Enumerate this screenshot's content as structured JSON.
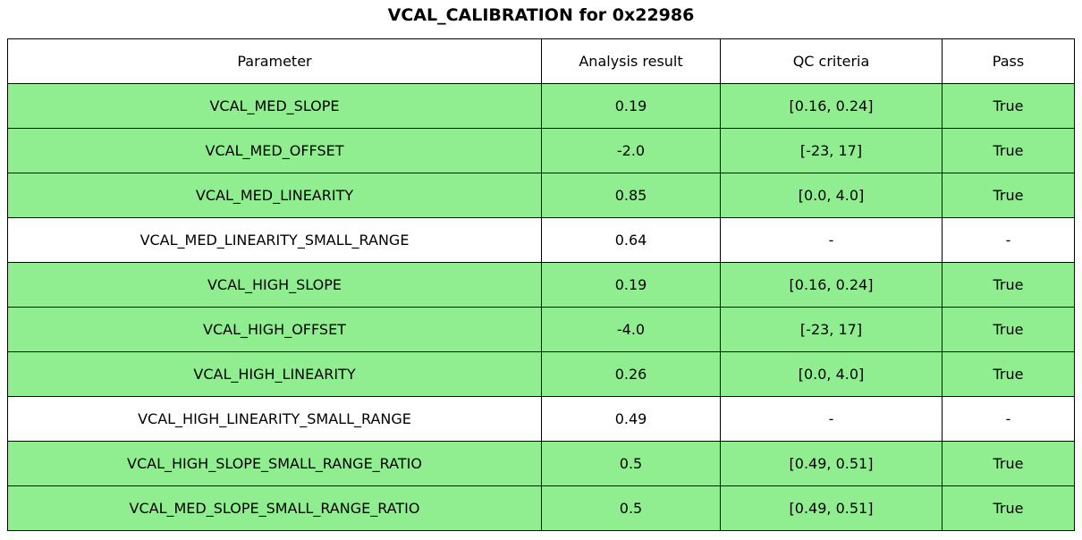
{
  "title": "VCAL_CALIBRATION for 0x22986",
  "chart_data": {
    "type": "table",
    "title": "VCAL_CALIBRATION for 0x22986",
    "columns": [
      "Parameter",
      "Analysis result",
      "QC criteria",
      "Pass"
    ],
    "rows": [
      {
        "parameter": "VCAL_MED_SLOPE",
        "result": "0.19",
        "criteria": "[0.16, 0.24]",
        "pass": "True",
        "highlight": true
      },
      {
        "parameter": "VCAL_MED_OFFSET",
        "result": "-2.0",
        "criteria": "[-23, 17]",
        "pass": "True",
        "highlight": true
      },
      {
        "parameter": "VCAL_MED_LINEARITY",
        "result": "0.85",
        "criteria": "[0.0, 4.0]",
        "pass": "True",
        "highlight": true
      },
      {
        "parameter": "VCAL_MED_LINEARITY_SMALL_RANGE",
        "result": "0.64",
        "criteria": "-",
        "pass": "-",
        "highlight": false
      },
      {
        "parameter": "VCAL_HIGH_SLOPE",
        "result": "0.19",
        "criteria": "[0.16, 0.24]",
        "pass": "True",
        "highlight": true
      },
      {
        "parameter": "VCAL_HIGH_OFFSET",
        "result": "-4.0",
        "criteria": "[-23, 17]",
        "pass": "True",
        "highlight": true
      },
      {
        "parameter": "VCAL_HIGH_LINEARITY",
        "result": "0.26",
        "criteria": "[0.0, 4.0]",
        "pass": "True",
        "highlight": true
      },
      {
        "parameter": "VCAL_HIGH_LINEARITY_SMALL_RANGE",
        "result": "0.49",
        "criteria": "-",
        "pass": "-",
        "highlight": false
      },
      {
        "parameter": "VCAL_HIGH_SLOPE_SMALL_RANGE_RATIO",
        "result": "0.5",
        "criteria": "[0.49, 0.51]",
        "pass": "True",
        "highlight": true
      },
      {
        "parameter": "VCAL_MED_SLOPE_SMALL_RANGE_RATIO",
        "result": "0.5",
        "criteria": "[0.49, 0.51]",
        "pass": "True",
        "highlight": true
      }
    ],
    "colors": {
      "pass_row_bg": "#90EE90",
      "neutral_row_bg": "#FFFFFF",
      "border": "#000000"
    }
  }
}
